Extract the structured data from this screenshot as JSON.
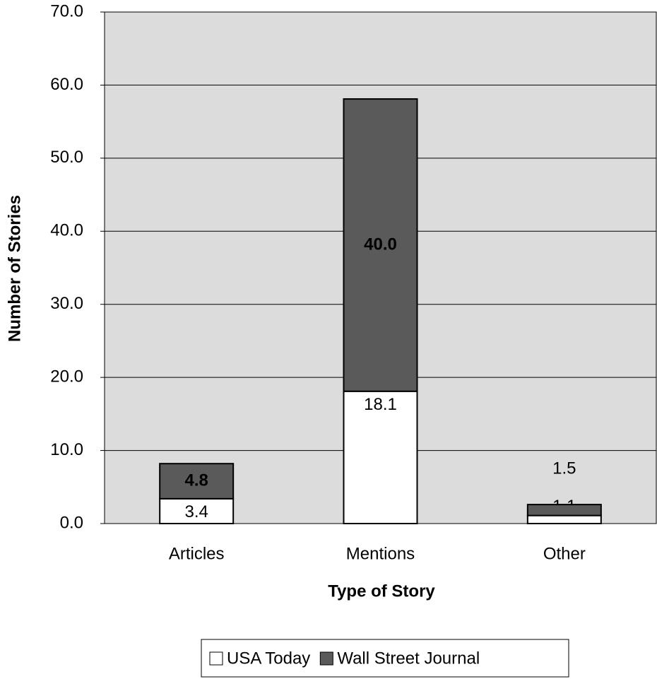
{
  "chart_data": {
    "type": "stacked_bar",
    "x_label": "Type of Story",
    "y_label": "Number of Stories",
    "categories": [
      "Articles",
      "Mentions",
      "Other"
    ],
    "series": [
      {
        "name": "USA Today",
        "color": "#ffffff",
        "values": [
          3.4,
          18.1,
          1.1
        ],
        "value_labels": [
          "3.4",
          "18.1",
          "1.1"
        ]
      },
      {
        "name": "Wall Street Journal",
        "color": "#5a5a5a",
        "values": [
          4.8,
          40.0,
          1.5
        ],
        "value_labels": [
          "4.8",
          "40.0",
          "1.5"
        ]
      }
    ],
    "ylim": [
      0,
      70
    ],
    "yticks": [
      {
        "value": 0,
        "label": "0.0"
      },
      {
        "value": 10,
        "label": "10.0"
      },
      {
        "value": 20,
        "label": "20.0"
      },
      {
        "value": 30,
        "label": "30.0"
      },
      {
        "value": 40,
        "label": "40.0"
      },
      {
        "value": 50,
        "label": "50.0"
      },
      {
        "value": 60,
        "label": "60.0"
      },
      {
        "value": 70,
        "label": "70.0"
      }
    ],
    "grid": true,
    "legend": "bottom"
  }
}
